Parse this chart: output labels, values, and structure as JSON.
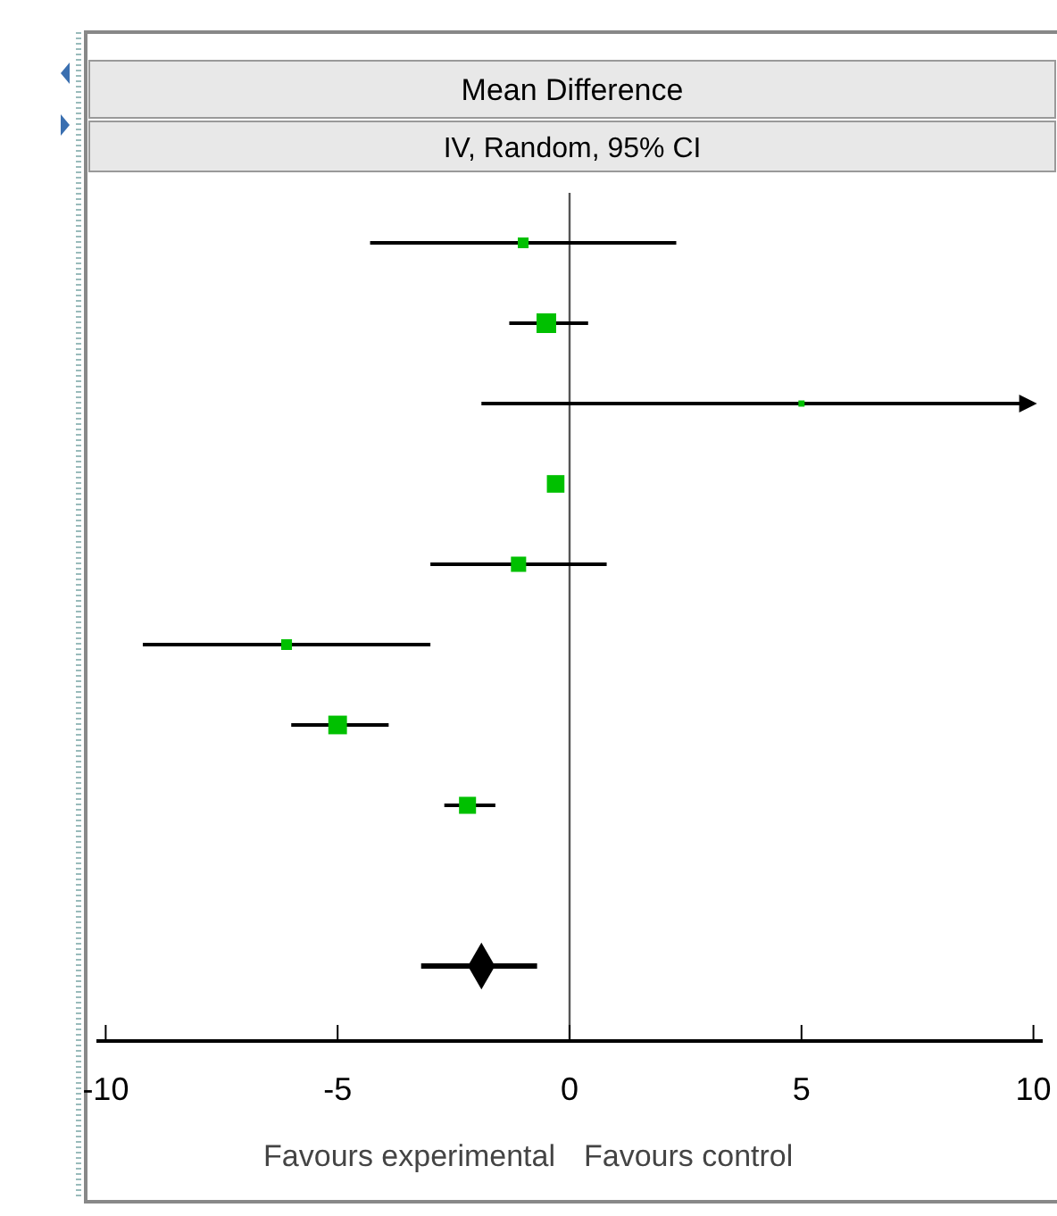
{
  "chart_data": {
    "type": "bubble",
    "title": "Mean Difference",
    "subtitle": "IV, Random, 95% CI",
    "orientation": "horizontal",
    "categories": [
      null,
      null,
      null,
      null,
      null,
      null,
      null,
      null,
      null,
      null
    ],
    "series": [
      {
        "color": "#00c000",
        "marker": "square",
        "values": [
          -1.0,
          -0.5,
          5.0,
          -0.3,
          -1.1,
          -6.1,
          -5.0,
          -2.2,
          null,
          null
        ],
        "errors": [
          [
            -4.3,
            2.3
          ],
          [
            -1.3,
            0.4
          ],
          [
            -1.9,
            10
          ],
          null,
          [
            -3.0,
            0.8
          ],
          [
            -9.2,
            -3.0
          ],
          [
            -6.0,
            -3.9
          ],
          [
            -2.7,
            -1.6
          ],
          null,
          null
        ],
        "sizes": [
          0.3,
          1,
          0.1,
          0.8,
          0.6,
          0.3,
          0.9,
          0.75,
          null,
          null
        ]
      },
      {
        "type": "scatter",
        "color": "#000000",
        "marker": "diamond",
        "values": [
          null,
          null,
          null,
          null,
          null,
          null,
          null,
          null,
          null,
          -1.9
        ],
        "errors": [
          null,
          null,
          null,
          null,
          null,
          null,
          null,
          null,
          null,
          [
            -3.2,
            -0.7
          ]
        ]
      }
    ],
    "xlim": [
      -10.2,
      10.2
    ],
    "xticks": [
      -10,
      -5,
      0,
      5,
      10
    ],
    "ref_lines": [
      {
        "axis": "x",
        "value": 0,
        "color": "#555555"
      }
    ],
    "grid": false,
    "annotations": [
      "Favours experimental",
      "Favours control"
    ]
  }
}
